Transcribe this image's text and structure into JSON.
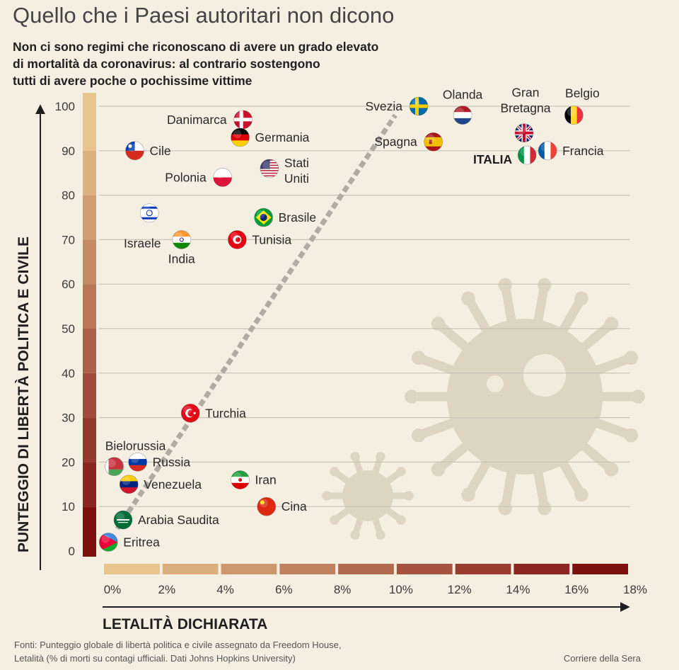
{
  "title": "Quello che i Paesi autoritari non dicono",
  "subtitle": [
    "Non ci sono regimi che riconoscano di avere un grado elevato",
    "di mortalità da coronavirus: al contrario sostengono",
    "tutti di avere poche o pochissime vittime"
  ],
  "footer": {
    "source_line1": "Fonti: Punteggio globale di libertà politica e civile assegnato da Freedom House,",
    "source_line2": "Letalità (% di morti su contagi ufficiali. Dati Johns Hopkins University)",
    "credit": "Corriere della Sera"
  },
  "colors": {
    "background": "#f4efe1",
    "grid": "#c9c4b6",
    "trend": "#b0aca4",
    "virus": "#ddd5c2",
    "scale_light": "#e8c58e",
    "scale_dark": "#7e1010"
  },
  "chart_data": {
    "type": "scatter",
    "xlabel": "LETALITÀ DICHIARATA",
    "ylabel": "PUNTEGGIO DI LIBERTÀ POLITICA E CIVILE",
    "xlim": [
      0,
      18
    ],
    "ylim": [
      0,
      100
    ],
    "x_ticks": [
      0,
      2,
      4,
      6,
      8,
      10,
      12,
      14,
      16,
      18
    ],
    "x_tick_labels": [
      "0%",
      "2%",
      "4%",
      "6%",
      "8%",
      "10%",
      "12%",
      "14%",
      "16%",
      "18%"
    ],
    "y_ticks": [
      0,
      10,
      20,
      30,
      40,
      50,
      60,
      70,
      80,
      90,
      100
    ],
    "grid": "horizontal",
    "trend_line": {
      "from": [
        0.5,
        5
      ],
      "to": [
        10,
        98
      ]
    },
    "points": [
      {
        "name": "Danimarca",
        "x": 4.8,
        "y": 97,
        "flag": "denmark-flag",
        "label_pos": "left"
      },
      {
        "name": "Germania",
        "x": 4.7,
        "y": 93,
        "flag": "germany-flag",
        "label_pos": "right"
      },
      {
        "name": "Cile",
        "x": 1.1,
        "y": 90,
        "flag": "chile-flag",
        "label_pos": "right"
      },
      {
        "name": "Stati Uniti",
        "x": 5.7,
        "y": 86,
        "flag": "usa-flag",
        "label_pos": "right-two-line"
      },
      {
        "name": "Polonia",
        "x": 4.1,
        "y": 84,
        "flag": "poland-flag",
        "label_pos": "left"
      },
      {
        "name": "Israele",
        "x": 1.6,
        "y": 76,
        "flag": "israel-flag",
        "label_pos": "below-left"
      },
      {
        "name": "Brasile",
        "x": 5.5,
        "y": 75,
        "flag": "brazil-flag",
        "label_pos": "right"
      },
      {
        "name": "India",
        "x": 2.7,
        "y": 70,
        "flag": "india-flag",
        "label_pos": "below"
      },
      {
        "name": "Tunisia",
        "x": 4.6,
        "y": 70,
        "flag": "tunisia-flag",
        "label_pos": "right"
      },
      {
        "name": "Svezia",
        "x": 10.8,
        "y": 100,
        "flag": "sweden-flag",
        "label_pos": "left"
      },
      {
        "name": "Olanda",
        "x": 12.3,
        "y": 98,
        "flag": "netherlands-flag",
        "label_pos": "above"
      },
      {
        "name": "Belgio",
        "x": 16.1,
        "y": 98,
        "flag": "belgium-flag",
        "label_pos": "above-right"
      },
      {
        "name": "Gran Bretagna",
        "x": 14.4,
        "y": 94,
        "flag": "uk-flag",
        "label_pos": "above-two-line"
      },
      {
        "name": "Spagna",
        "x": 11.3,
        "y": 92,
        "flag": "spain-flag",
        "label_pos": "left"
      },
      {
        "name": "Francia",
        "x": 15.2,
        "y": 90,
        "flag": "france-flag",
        "label_pos": "right"
      },
      {
        "name": "ITALIA",
        "x": 14.5,
        "y": 89,
        "flag": "italy-flag",
        "label_pos": "left-bold"
      },
      {
        "name": "Turchia",
        "x": 3.0,
        "y": 31,
        "flag": "turkey-flag",
        "label_pos": "right"
      },
      {
        "name": "Bielorussia",
        "x": 0.4,
        "y": 19,
        "flag": "belarus-flag",
        "label_pos": "above"
      },
      {
        "name": "Russia",
        "x": 1.2,
        "y": 20,
        "flag": "russia-flag",
        "label_pos": "right"
      },
      {
        "name": "Venezuela",
        "x": 0.9,
        "y": 15,
        "flag": "venezuela-flag",
        "label_pos": "right"
      },
      {
        "name": "Iran",
        "x": 4.7,
        "y": 16,
        "flag": "iran-flag",
        "label_pos": "right"
      },
      {
        "name": "Cina",
        "x": 5.6,
        "y": 10,
        "flag": "china-flag",
        "label_pos": "right"
      },
      {
        "name": "Arabia Saudita",
        "x": 0.7,
        "y": 7,
        "flag": "saudi-flag",
        "label_pos": "right"
      },
      {
        "name": "Eritrea",
        "x": 0.2,
        "y": 2,
        "flag": "eritrea-flag",
        "label_pos": "right"
      }
    ]
  }
}
